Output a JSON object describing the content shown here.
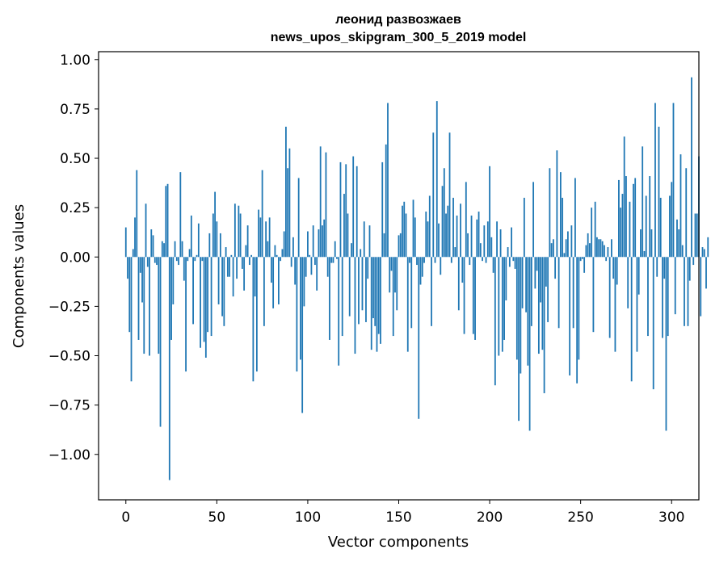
{
  "chart_data": {
    "type": "bar",
    "title": "леонид развозжаев",
    "subtitle": "news_upos_skipgram_300_5_2019 model",
    "xlabel": "Vector components",
    "ylabel": "Components values",
    "xlim": [
      -15,
      315
    ],
    "ylim": [
      -1.23,
      1.04
    ],
    "xticks": [
      0,
      50,
      100,
      150,
      200,
      250,
      300
    ],
    "xtick_labels": [
      "0",
      "50",
      "100",
      "150",
      "200",
      "250",
      "300"
    ],
    "yticks": [
      1.0,
      0.75,
      0.5,
      0.25,
      0.0,
      -0.25,
      -0.5,
      -0.75,
      -1.0
    ],
    "ytick_labels": [
      "1.00",
      "0.75",
      "0.50",
      "0.25",
      "0.00",
      "−0.25",
      "−0.50",
      "−0.75",
      "−1.00"
    ],
    "grid": false,
    "bar_color": "#1f77b4",
    "values": [
      0.15,
      -0.11,
      -0.38,
      -0.63,
      0.04,
      0.2,
      0.44,
      -0.42,
      -0.08,
      -0.23,
      -0.49,
      0.27,
      -0.05,
      -0.5,
      0.14,
      0.11,
      -0.03,
      -0.04,
      -0.49,
      -0.86,
      0.08,
      0.07,
      0.36,
      0.37,
      -1.13,
      -0.42,
      -0.24,
      0.08,
      -0.02,
      -0.04,
      0.43,
      0.08,
      -0.12,
      -0.58,
      -0.02,
      0.04,
      0.21,
      -0.34,
      -0.02,
      0.01,
      0.17,
      -0.46,
      -0.02,
      -0.43,
      -0.51,
      -0.38,
      0.12,
      -0.4,
      0.22,
      0.33,
      0.18,
      -0.24,
      0.12,
      -0.3,
      -0.35,
      0.05,
      -0.1,
      -0.1,
      0.01,
      -0.2,
      0.27,
      -0.11,
      0.26,
      0.22,
      -0.06,
      -0.17,
      0.06,
      0.16,
      -0.04,
      0.01,
      -0.63,
      -0.2,
      -0.58,
      0.24,
      0.2,
      0.44,
      -0.35,
      0.18,
      0.08,
      0.2,
      -0.13,
      -0.26,
      0.06,
      0.01,
      -0.24,
      -0.02,
      0.04,
      0.13,
      0.66,
      0.45,
      0.55,
      -0.05,
      0.1,
      -0.14,
      -0.58,
      0.4,
      -0.52,
      -0.79,
      -0.25,
      -0.1,
      0.13,
      0.01,
      -0.09,
      0.16,
      -0.04,
      -0.17,
      0.14,
      0.56,
      0.16,
      0.19,
      0.53,
      -0.1,
      -0.42,
      -0.03,
      -0.03,
      0.08,
      -0.01,
      -0.55,
      0.48,
      -0.4,
      0.32,
      0.47,
      0.22,
      -0.3,
      0.07,
      0.51,
      -0.49,
      0.46,
      -0.34,
      0.04,
      -0.27,
      0.18,
      -0.33,
      -0.11,
      0.16,
      -0.47,
      -0.31,
      -0.35,
      -0.48,
      -0.39,
      -0.44,
      0.48,
      0.12,
      0.57,
      0.78,
      -0.18,
      -0.07,
      -0.4,
      -0.18,
      -0.27,
      0.11,
      0.12,
      0.26,
      0.28,
      0.22,
      -0.48,
      -0.03,
      -0.36,
      0.29,
      0.2,
      -0.04,
      -0.82,
      -0.14,
      -0.1,
      -0.03,
      0.23,
      0.18,
      0.31,
      -0.35,
      0.63,
      -0.03,
      0.79,
      0.17,
      -0.09,
      0.36,
      0.45,
      0.22,
      0.26,
      0.63,
      -0.03,
      0.3,
      0.05,
      0.21,
      -0.27,
      0.27,
      -0.13,
      -0.39,
      0.38,
      0.12,
      -0.04,
      0.21,
      -0.39,
      -0.42,
      0.19,
      0.23,
      0.07,
      -0.02,
      0.16,
      -0.03,
      0.18,
      0.46,
      0.1,
      -0.08,
      -0.65,
      0.18,
      -0.5,
      0.14,
      -0.48,
      -0.42,
      -0.22,
      0.05,
      -0.05,
      0.15,
      -0.02,
      -0.06,
      -0.52,
      -0.83,
      -0.59,
      -0.26,
      0.3,
      -0.28,
      -0.55,
      -0.88,
      -0.35,
      0.38,
      -0.16,
      -0.07,
      -0.49,
      -0.23,
      -0.47,
      -0.69,
      -0.15,
      -0.33,
      0.45,
      0.07,
      0.09,
      -0.11,
      0.54,
      -0.36,
      0.43,
      0.3,
      0.02,
      0.09,
      0.13,
      -0.6,
      0.16,
      -0.36,
      0.4,
      -0.64,
      -0.52,
      -0.02,
      -0.01,
      -0.08,
      0.06,
      0.12,
      0.07,
      0.25,
      -0.38,
      0.28,
      0.1,
      0.09,
      0.09,
      0.08,
      0.06,
      -0.02,
      0.05,
      -0.41,
      0.09,
      -0.11,
      -0.48,
      -0.14,
      0.39,
      0.25,
      0.32,
      0.61,
      0.41,
      -0.26,
      0.28,
      -0.63,
      0.37,
      0.4,
      -0.48,
      -0.19,
      0.14,
      0.56,
      0.03,
      0.31,
      -0.4,
      0.41,
      0.14,
      -0.67,
      0.78,
      -0.1,
      0.66,
      0.3,
      -0.41,
      -0.11,
      -0.88,
      -0.4,
      0.31,
      0.38,
      0.78,
      -0.29,
      0.19,
      0.14,
      0.52,
      0.06,
      -0.35,
      0.45,
      -0.35,
      -0.12,
      0.91,
      -0.04,
      0.22,
      0.22,
      0.51,
      -0.3,
      0.05,
      0.04,
      -0.16,
      0.1
    ]
  }
}
